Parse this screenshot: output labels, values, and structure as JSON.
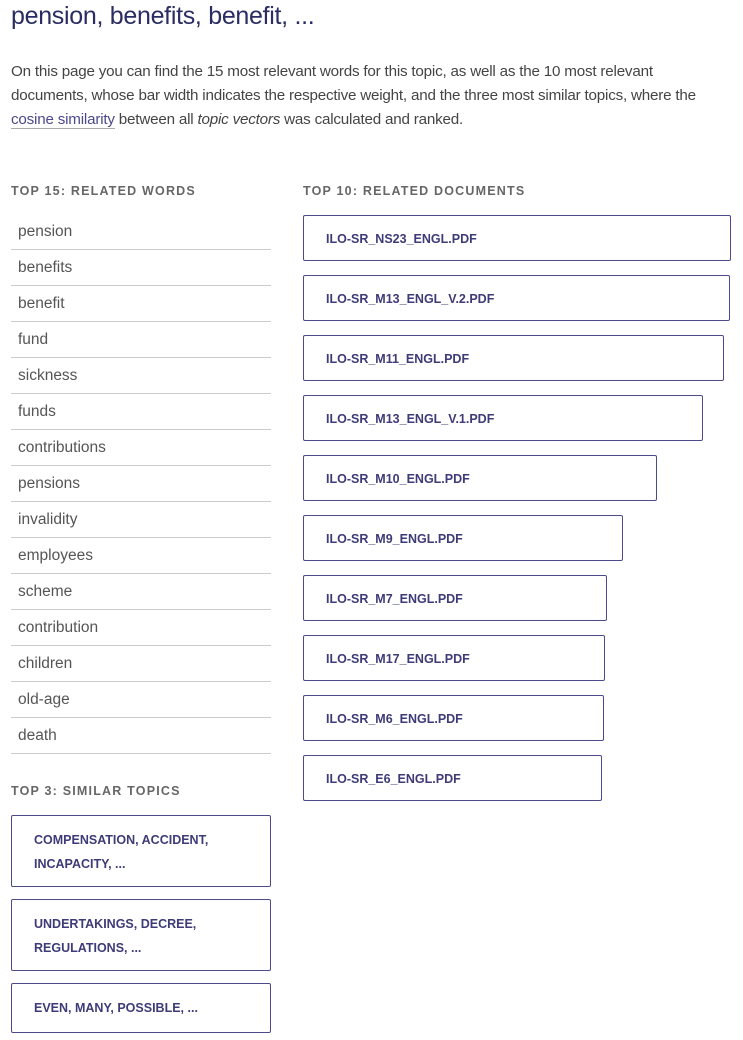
{
  "title": "pension, benefits, benefit, ...",
  "intro": {
    "part1": "On this page you can find the 15 most relevant words for this topic, as well as the 10 most relevant documents, whose bar width indicates the respective weight, and the three most similar topics, where the ",
    "link": "cosine similarity",
    "part2": " between all ",
    "italic": "topic vectors",
    "part3": " was calculated and ranked."
  },
  "words_heading": "TOP 15: RELATED WORDS",
  "words": [
    "pension",
    "benefits",
    "benefit",
    "fund",
    "sickness",
    "funds",
    "contributions",
    "pensions",
    "invalidity",
    "employees",
    "scheme",
    "contribution",
    "children",
    "old-age",
    "death"
  ],
  "documents_heading": "TOP 10: RELATED DOCUMENTS",
  "documents": [
    {
      "label": "ILO-SR_NS23_ENGL.PDF",
      "relative_weight": 1.0
    },
    {
      "label": "ILO-SR_M13_ENGL_V.2.PDF",
      "relative_weight": 0.998
    },
    {
      "label": "ILO-SR_M11_ENGL.PDF",
      "relative_weight": 0.984
    },
    {
      "label": "ILO-SR_M13_ENGL_V.1.PDF",
      "relative_weight": 0.934
    },
    {
      "label": "ILO-SR_M10_ENGL.PDF",
      "relative_weight": 0.827
    },
    {
      "label": "ILO-SR_M9_ENGL.PDF",
      "relative_weight": 0.747
    },
    {
      "label": "ILO-SR_M7_ENGL.PDF",
      "relative_weight": 0.71
    },
    {
      "label": "ILO-SR_M17_ENGL.PDF",
      "relative_weight": 0.705
    },
    {
      "label": "ILO-SR_M6_ENGL.PDF",
      "relative_weight": 0.703
    },
    {
      "label": "ILO-SR_E6_ENGL.PDF",
      "relative_weight": 0.698
    }
  ],
  "topics_heading": "TOP 3: SIMILAR TOPICS",
  "topics": [
    "COMPENSATION, ACCIDENT, INCAPACITY, ...",
    "UNDERTAKINGS, DECREE, REGULATIONS, ...",
    "EVEN, MANY, POSSIBLE, ..."
  ],
  "colors": {
    "accent": "#4b4a8a",
    "title": "#2a2d63"
  }
}
